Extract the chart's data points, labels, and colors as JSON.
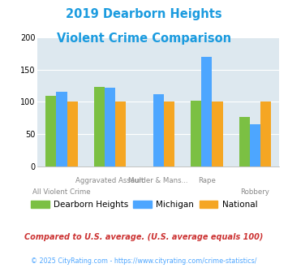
{
  "title_line1": "2019 Dearborn Heights",
  "title_line2": "Violent Crime Comparison",
  "title_color": "#1b9bdf",
  "categories": [
    "All Violent Crime",
    "Aggravated Assault",
    "Murder & Mans...",
    "Rape",
    "Robbery"
  ],
  "series": {
    "Dearborn Heights": [
      109,
      123,
      0,
      102,
      76
    ],
    "Michigan": [
      116,
      122,
      112,
      170,
      65
    ],
    "National": [
      100,
      100,
      100,
      100,
      100
    ]
  },
  "colors": {
    "Dearborn Heights": "#7bc043",
    "Michigan": "#4da6ff",
    "National": "#f5a623"
  },
  "ylim": [
    0,
    200
  ],
  "yticks": [
    0,
    50,
    100,
    150,
    200
  ],
  "top_xlabels": [
    "",
    "Aggravated Assault",
    "Murder & Mans...",
    "Rape",
    ""
  ],
  "bot_xlabels": [
    "All Violent Crime",
    "",
    "",
    "",
    "Robbery"
  ],
  "footnote1": "Compared to U.S. average. (U.S. average equals 100)",
  "footnote2": "© 2025 CityRating.com - https://www.cityrating.com/crime-statistics/",
  "footnote1_color": "#cc3333",
  "footnote2_color": "#4da6ff",
  "bg_color": "#dde8ef",
  "bar_width": 0.22
}
